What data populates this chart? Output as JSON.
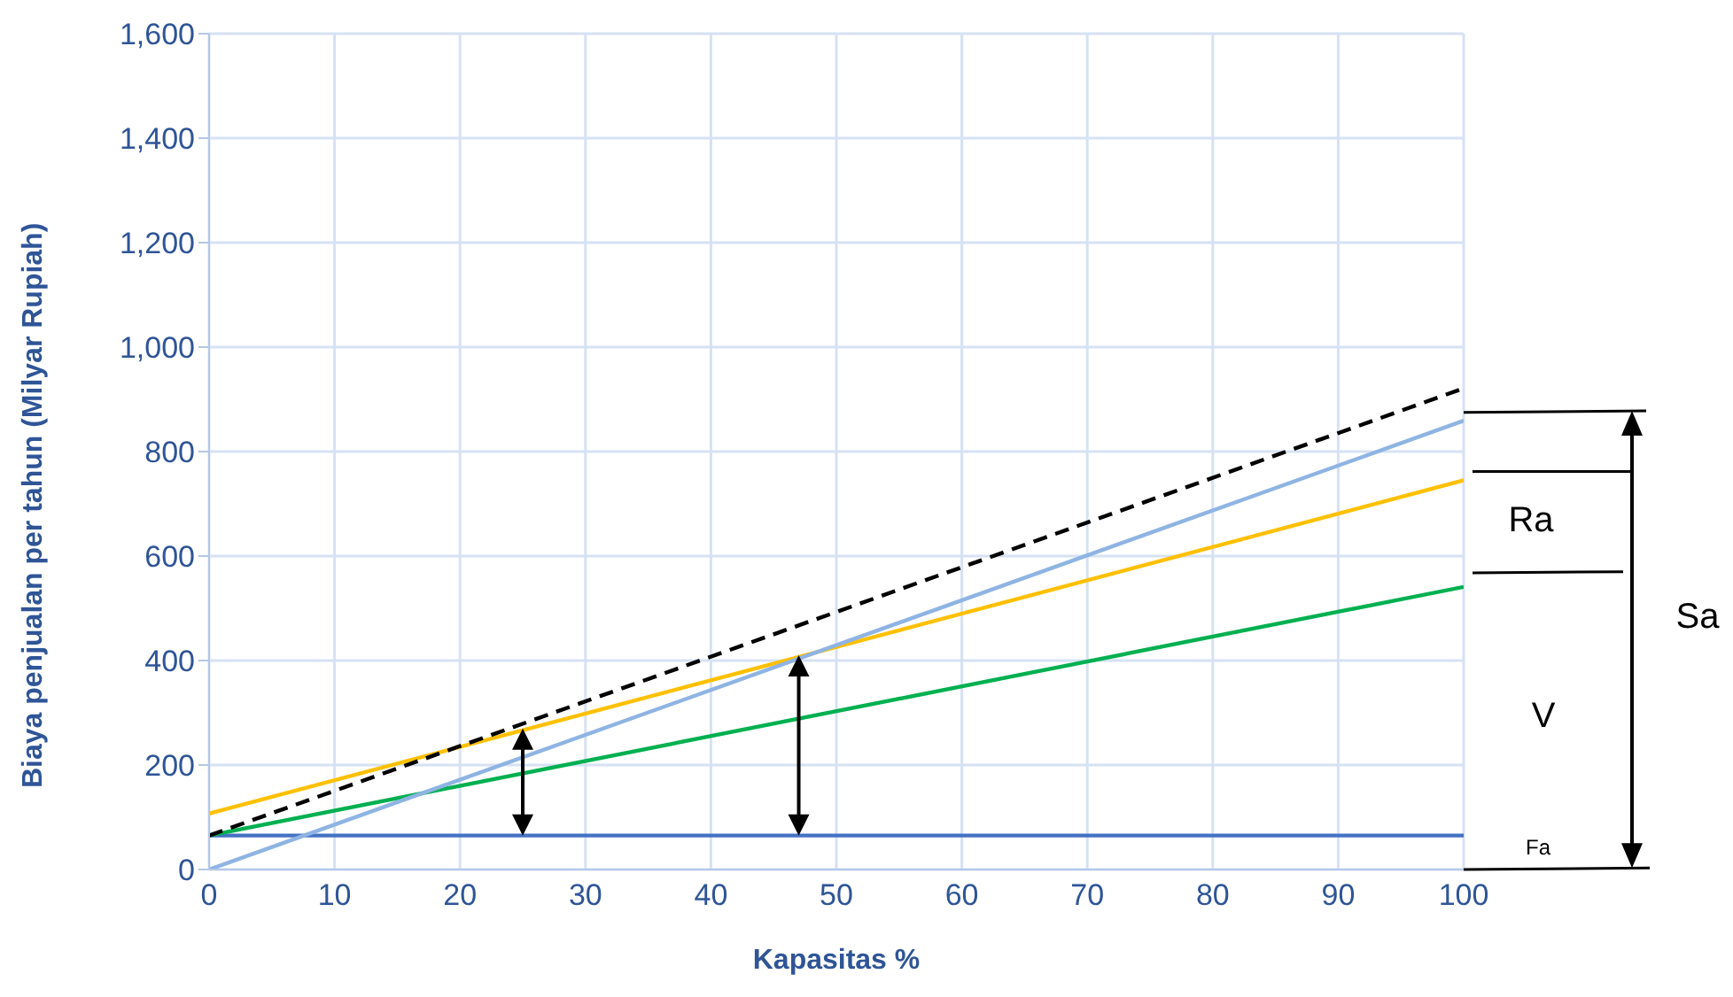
{
  "chart_data": {
    "type": "line",
    "xlabel": "Kapasitas %",
    "ylabel": "Biaya penjualan per tahun (Milyar Rupiah)",
    "x": [
      0,
      100
    ],
    "series": [
      {
        "color": "#4472c4",
        "values": [
          65,
          65
        ]
      },
      {
        "color": "#00b050",
        "values": [
          65,
          541
        ]
      },
      {
        "color": "#ffc000",
        "values": [
          107,
          745
        ]
      },
      {
        "color": "#8eb4e3",
        "values": [
          0,
          859
        ]
      },
      {
        "color": "#000000",
        "values": [
          65,
          921
        ],
        "line_style": "dashed"
      }
    ],
    "xlim": [
      0,
      100
    ],
    "xticks": [
      0,
      10,
      20,
      30,
      40,
      50,
      60,
      70,
      80,
      90,
      100
    ],
    "ylim": [
      0,
      1600
    ],
    "yticks": [
      0,
      200,
      400,
      600,
      800,
      {
        "value": 1000,
        "label": "1,000"
      },
      {
        "value": 1200,
        "label": "1,200"
      },
      {
        "value": 1400,
        "label": "1,400"
      },
      {
        "value": 1600,
        "label": "1,600"
      }
    ],
    "grid": true,
    "legend": false,
    "marker": "none",
    "annotations": [
      "Ra",
      "V",
      "Sa",
      "Fa"
    ]
  }
}
